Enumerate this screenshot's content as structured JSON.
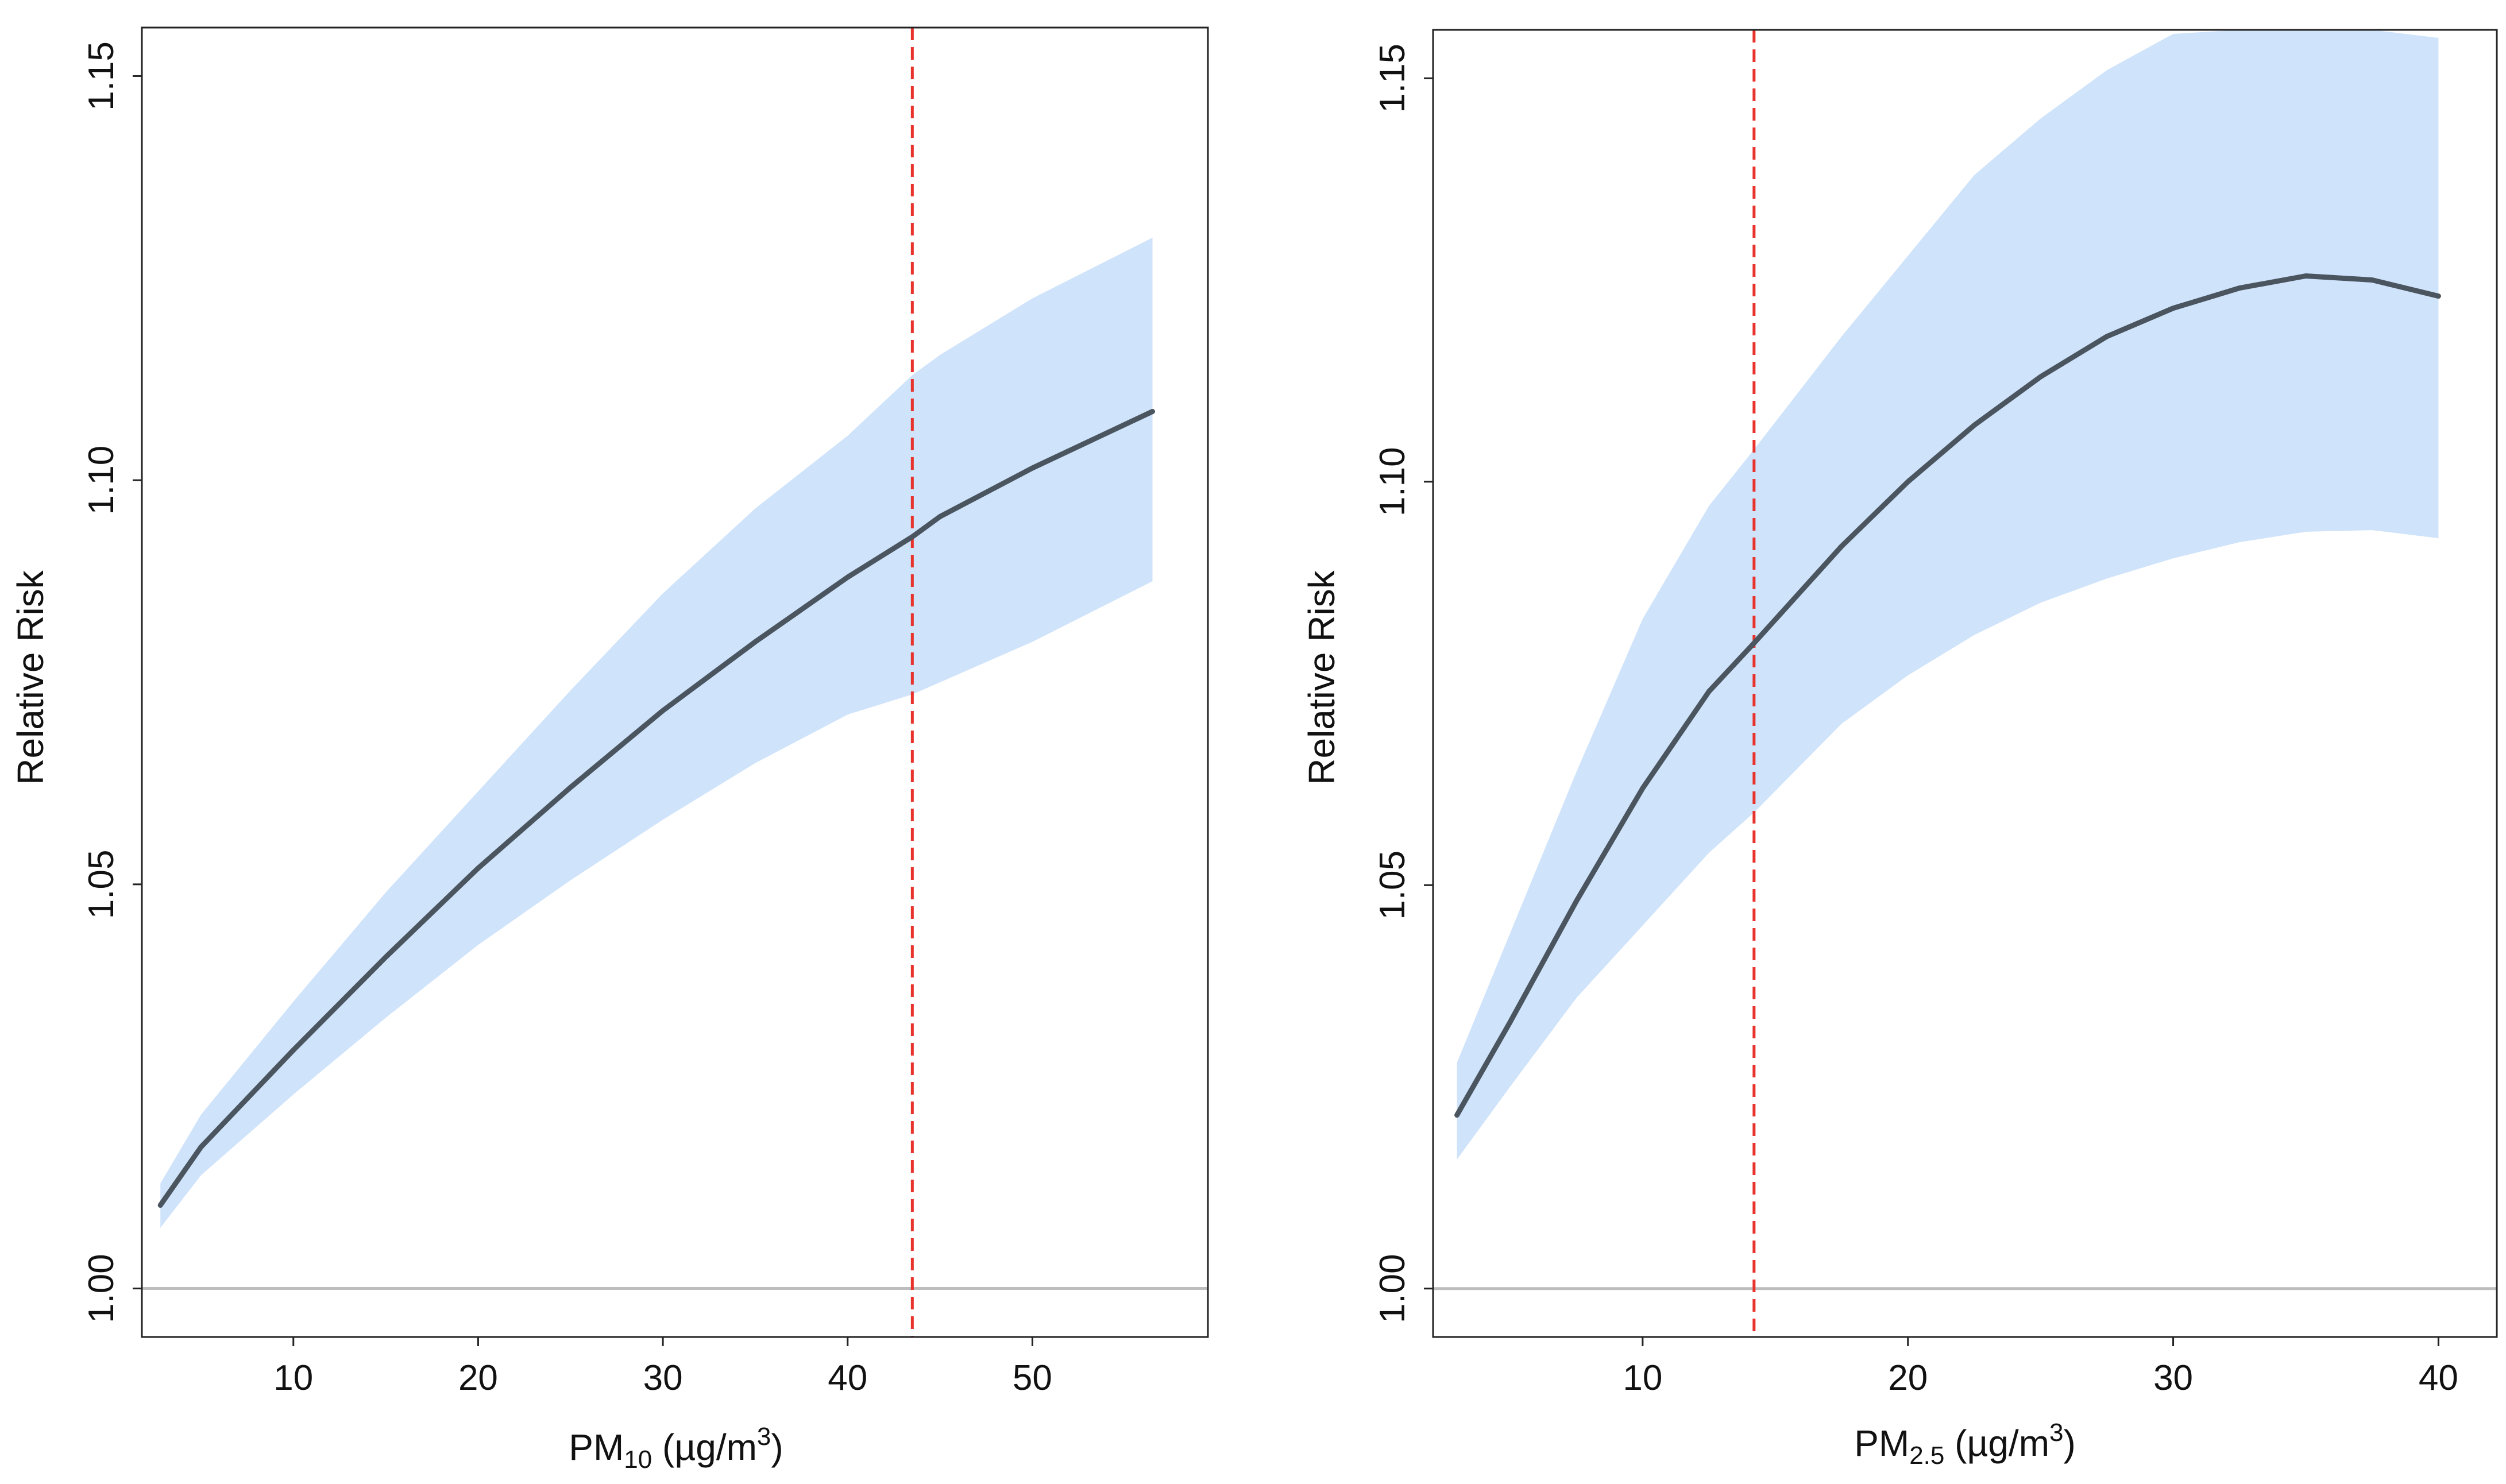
{
  "colors": {
    "band": "#cfe3fb",
    "line": "#4a5560",
    "reference": "#e8322c",
    "baseline": "#bdbdbd",
    "frame": "#222222"
  },
  "chart_data": [
    {
      "type": "line",
      "id": "pm10",
      "xlabel": {
        "main": "PM",
        "sub": "10",
        "unit_open": " (µg/m",
        "sup": "3",
        "unit_close": ")"
      },
      "ylabel": "Relative Risk",
      "xlim": [
        1.8,
        59.5
      ],
      "ylim": [
        0.994,
        1.156
      ],
      "xticks": [
        10,
        20,
        30,
        40,
        50
      ],
      "xtick_labels": [
        "10",
        "20",
        "30",
        "40",
        "50"
      ],
      "yticks": [
        1.0,
        1.05,
        1.1,
        1.15
      ],
      "ytick_labels": [
        "1.00",
        "1.05",
        "1.10",
        "1.15"
      ],
      "baseline": 1.0,
      "reference_x": 43.5,
      "series": [
        {
          "name": "estimate",
          "x": [
            2.8,
            5,
            10,
            15,
            20,
            25,
            30,
            35,
            40,
            43.5,
            45,
            50,
            56.5
          ],
          "y": [
            1.0103,
            1.0175,
            1.0295,
            1.041,
            1.052,
            1.062,
            1.0715,
            1.08,
            1.088,
            1.093,
            1.0955,
            1.1015,
            1.1085
          ],
          "lower": [
            1.0075,
            1.014,
            1.024,
            1.0335,
            1.0425,
            1.0505,
            1.058,
            1.065,
            1.071,
            1.0735,
            1.075,
            1.08,
            1.0875
          ],
          "upper": [
            1.013,
            1.0215,
            1.0355,
            1.049,
            1.0615,
            1.074,
            1.086,
            1.0965,
            1.1055,
            1.113,
            1.1155,
            1.1225,
            1.13
          ]
        }
      ]
    },
    {
      "type": "line",
      "id": "pm25",
      "xlabel": {
        "main": "PM",
        "sub": "2.5",
        "unit_open": " (µg/m",
        "sup": "3",
        "unit_close": ")"
      },
      "ylabel": "Relative Risk",
      "xlim": [
        2.1,
        42.2
      ],
      "ylim": [
        0.994,
        1.156
      ],
      "xticks": [
        10,
        20,
        30,
        40
      ],
      "xtick_labels": [
        "10",
        "20",
        "30",
        "40"
      ],
      "yticks": [
        1.0,
        1.05,
        1.1,
        1.15
      ],
      "ytick_labels": [
        "1.00",
        "1.05",
        "1.10",
        "1.15"
      ],
      "baseline": 1.0,
      "reference_x": 14.2,
      "series": [
        {
          "name": "estimate",
          "x": [
            3,
            5,
            7.5,
            10,
            12.5,
            14.2,
            17.5,
            20,
            22.5,
            25,
            27.5,
            30,
            32.5,
            35,
            37.5,
            40
          ],
          "y": [
            1.0215,
            1.033,
            1.048,
            1.062,
            1.074,
            1.08,
            1.092,
            1.1,
            1.107,
            1.113,
            1.118,
            1.1215,
            1.124,
            1.1255,
            1.125,
            1.123
          ],
          "lower": [
            1.016,
            1.025,
            1.036,
            1.045,
            1.054,
            1.059,
            1.07,
            1.076,
            1.081,
            1.085,
            1.088,
            1.0905,
            1.0925,
            1.0938,
            1.094,
            1.093
          ],
          "upper": [
            1.028,
            1.044,
            1.064,
            1.083,
            1.097,
            1.104,
            1.118,
            1.128,
            1.138,
            1.145,
            1.151,
            1.1555,
            1.156,
            1.156,
            1.156,
            1.155
          ]
        }
      ]
    }
  ]
}
